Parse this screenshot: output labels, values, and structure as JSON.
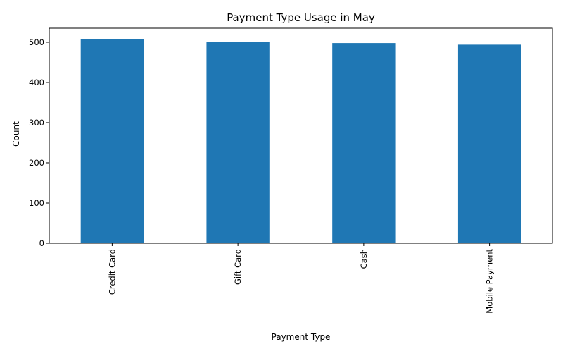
{
  "chart_data": {
    "type": "bar",
    "title": "Payment Type Usage in May",
    "xlabel": "Payment Type",
    "ylabel": "Count",
    "categories": [
      "Credit Card",
      "Gift Card",
      "Cash",
      "Mobile Payment"
    ],
    "values": [
      508,
      500,
      498,
      494
    ],
    "ylim": [
      0,
      535
    ],
    "yticks": [
      0,
      100,
      200,
      300,
      400,
      500
    ],
    "grid": false,
    "legend": "none",
    "x_tick_rotation": "vertical",
    "bar_color": "#1f77b4"
  }
}
